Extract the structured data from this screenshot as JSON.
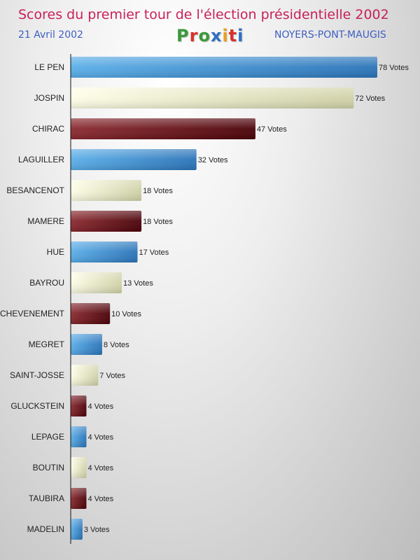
{
  "header": {
    "title": "Scores du premier tour de l'élection présidentielle 2002",
    "date": "21 Avril 2002",
    "commune": "NOYERS-PONT-MAUGIS",
    "logo_text": "Proxiti"
  },
  "colors": {
    "title": "#c8205a",
    "subtitle": "#3f5fc0",
    "blue_bar": "#2f7fc8",
    "cream_bar": "#e9ebc6",
    "maroon_bar": "#6b0e14"
  },
  "chart_data": {
    "type": "bar",
    "orientation": "horizontal",
    "title": "Scores du premier tour de l'élection présidentielle 2002",
    "value_suffix": " Votes",
    "categories": [
      "LE PEN",
      "JOSPIN",
      "CHIRAC",
      "LAGUILLER",
      "BESANCENOT",
      "MAMERE",
      "HUE",
      "BAYROU",
      "CHEVENEMENT",
      "MEGRET",
      "SAINT-JOSSE",
      "GLUCKSTEIN",
      "LEPAGE",
      "BOUTIN",
      "TAUBIRA",
      "MADELIN"
    ],
    "values": [
      78,
      72,
      47,
      32,
      18,
      18,
      17,
      13,
      10,
      8,
      7,
      4,
      4,
      4,
      4,
      3
    ],
    "bar_colors": [
      "blue",
      "cream",
      "maroon",
      "blue",
      "cream",
      "maroon",
      "blue",
      "cream",
      "maroon",
      "blue",
      "cream",
      "maroon",
      "blue",
      "cream",
      "maroon",
      "blue"
    ],
    "xlim": [
      0,
      78
    ],
    "grid": false
  }
}
